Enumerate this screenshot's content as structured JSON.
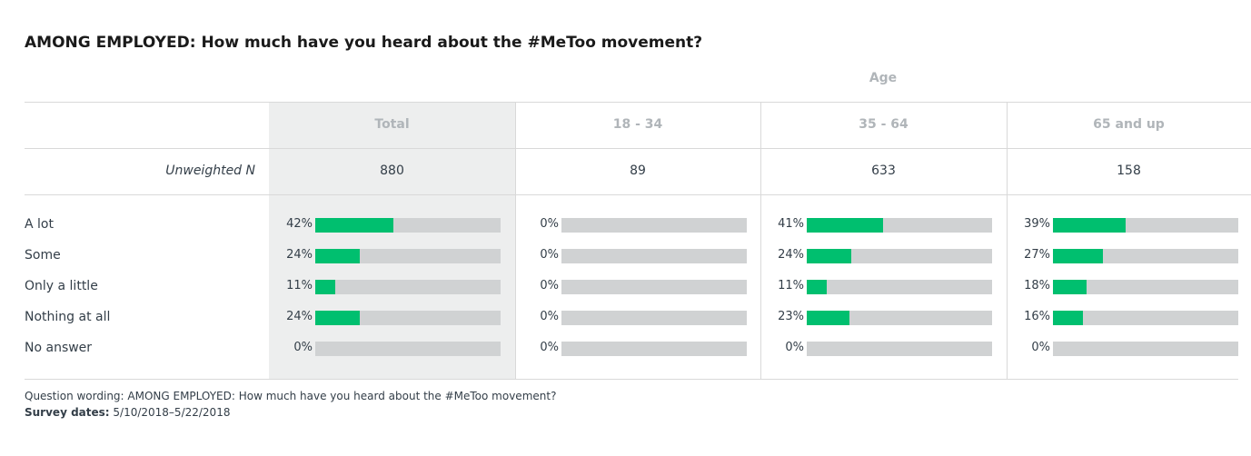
{
  "title": "AMONG EMPLOYED: How much have you heard about the #MeToo movement?",
  "group_label": "Age",
  "unweighted_label": "Unweighted N",
  "footer": {
    "wording": "Question wording: AMONG EMPLOYED: How much have you heard about the #MeToo movement?",
    "dates_label": "Survey dates:",
    "dates_value": "5/10/2018–5/22/2018"
  },
  "colors": {
    "bar_fill": "#00bf6f",
    "bar_track": "#d0d2d3",
    "total_column_bg": "#edeeee"
  },
  "chart_data": {
    "type": "bar",
    "title": "AMONG EMPLOYED: How much have you heard about the #MeToo movement?",
    "categories": [
      "A lot",
      "Some",
      "Only a little",
      "Nothing at all",
      "No answer"
    ],
    "xlim": [
      0,
      100
    ],
    "unit": "%",
    "columns": [
      {
        "name": "Total",
        "n": "880",
        "values": [
          42,
          24,
          11,
          24,
          0
        ],
        "labels": [
          "42%",
          "24%",
          "11%",
          "24%",
          "0%"
        ]
      },
      {
        "name": "18 - 34",
        "n": "89",
        "values": [
          0,
          0,
          0,
          0,
          0
        ],
        "labels": [
          "0%",
          "0%",
          "0%",
          "0%",
          "0%"
        ]
      },
      {
        "name": "35 - 64",
        "n": "633",
        "values": [
          41,
          24,
          11,
          23,
          0
        ],
        "labels": [
          "41%",
          "24%",
          "11%",
          "23%",
          "0%"
        ]
      },
      {
        "name": "65 and up",
        "n": "158",
        "values": [
          39,
          27,
          18,
          16,
          0
        ],
        "labels": [
          "39%",
          "27%",
          "18%",
          "16%",
          "0%"
        ]
      }
    ]
  }
}
